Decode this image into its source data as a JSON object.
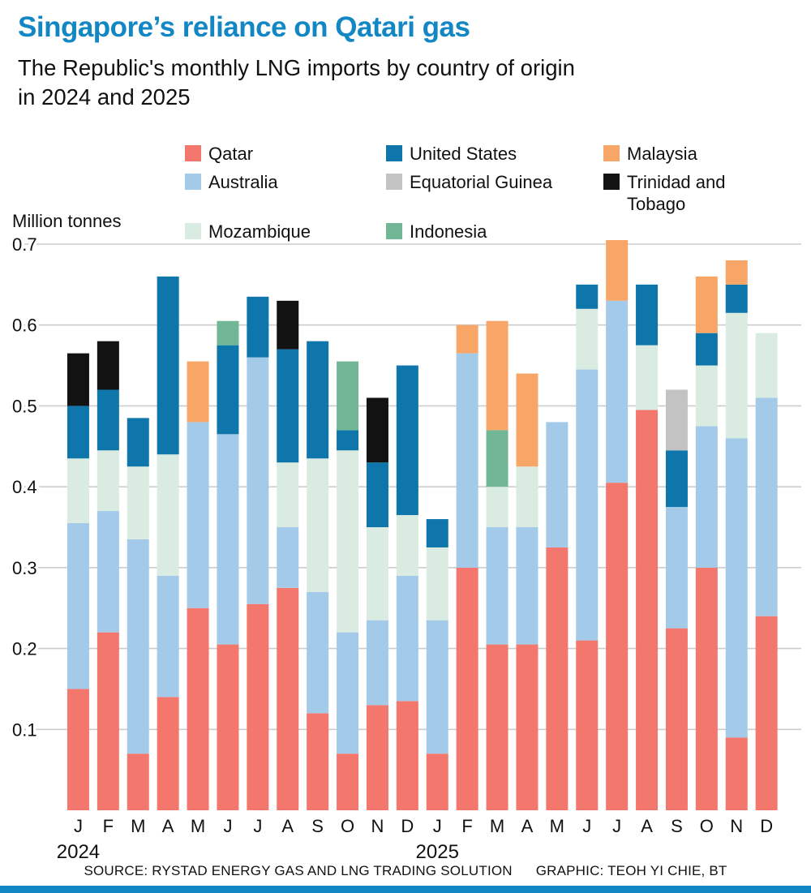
{
  "header": {
    "title": "Singapore’s reliance on Qatari gas",
    "subtitle_line1": "The Republic's monthly LNG imports by country of origin",
    "subtitle_line2": "in 2024 and 2025"
  },
  "colors": {
    "accent": "#1287c3",
    "gridline": "#cccccc",
    "text": "#111111"
  },
  "legend": {
    "order": [
      "Qatar",
      "United States",
      "Malaysia",
      "Australia",
      "Equatorial Guinea",
      "Trinidad and Tobago",
      "Mozambique",
      "Indonesia"
    ]
  },
  "chart_data": {
    "type": "bar",
    "stacked": true,
    "title": "Singapore’s reliance on Qatari gas",
    "unit_label": "Million tonnes",
    "grid": true,
    "legend_position": "top",
    "ylim": [
      0,
      0.72
    ],
    "yticks": [
      0.1,
      0.2,
      0.3,
      0.4,
      0.5,
      0.6,
      0.7
    ],
    "categories": [
      "J",
      "F",
      "M",
      "A",
      "M",
      "J",
      "J",
      "A",
      "S",
      "O",
      "N",
      "D",
      "J",
      "F",
      "M",
      "A",
      "M",
      "J",
      "J",
      "A",
      "S",
      "O",
      "N",
      "D"
    ],
    "year_labels": [
      {
        "label": "2024",
        "index": 0
      },
      {
        "label": "2025",
        "index": 12
      }
    ],
    "series": [
      {
        "name": "Qatar",
        "color": "#f3776d",
        "values": [
          0.15,
          0.22,
          0.07,
          0.14,
          0.25,
          0.205,
          0.255,
          0.275,
          0.12,
          0.07,
          0.13,
          0.135,
          0.07,
          0.3,
          0.205,
          0.205,
          0.325,
          0.21,
          0.405,
          0.495,
          0.225,
          0.3,
          0.09,
          0.24
        ]
      },
      {
        "name": "Australia",
        "color": "#a3cbe9",
        "values": [
          0.205,
          0.15,
          0.265,
          0.15,
          0.23,
          0.26,
          0.305,
          0.075,
          0.15,
          0.15,
          0.105,
          0.155,
          0.165,
          0.265,
          0.145,
          0.145,
          0.155,
          0.335,
          0.225,
          0,
          0.15,
          0.175,
          0.37,
          0.27
        ]
      },
      {
        "name": "Mozambique",
        "color": "#daece1",
        "values": [
          0.08,
          0.075,
          0.09,
          0.15,
          0,
          0,
          0,
          0.08,
          0.165,
          0.225,
          0.115,
          0.075,
          0.09,
          0,
          0.05,
          0.075,
          0,
          0.075,
          0,
          0.08,
          0,
          0.075,
          0.155,
          0.08
        ]
      },
      {
        "name": "United States",
        "color": "#0e76aa",
        "values": [
          0.065,
          0.075,
          0.06,
          0.22,
          0,
          0.11,
          0.075,
          0.14,
          0.145,
          0.025,
          0.08,
          0.185,
          0.035,
          0,
          0,
          0,
          0,
          0.03,
          0,
          0.075,
          0.07,
          0.04,
          0.035,
          0
        ]
      },
      {
        "name": "Indonesia",
        "color": "#72b795",
        "values": [
          0,
          0,
          0,
          0,
          0,
          0.03,
          0,
          0,
          0,
          0.085,
          0,
          0,
          0,
          0,
          0.07,
          0,
          0,
          0,
          0,
          0,
          0,
          0,
          0,
          0
        ]
      },
      {
        "name": "Malaysia",
        "color": "#f8a667",
        "values": [
          0,
          0,
          0,
          0,
          0.075,
          0,
          0,
          0,
          0,
          0,
          0,
          0,
          0,
          0.035,
          0.135,
          0.115,
          0,
          0,
          0.075,
          0,
          0,
          0.07,
          0.03,
          0
        ]
      },
      {
        "name": "Equatorial Guinea",
        "color": "#c3c3c3",
        "values": [
          0,
          0,
          0,
          0,
          0,
          0,
          0,
          0,
          0,
          0,
          0,
          0,
          0,
          0,
          0,
          0,
          0,
          0,
          0,
          0,
          0.075,
          0,
          0,
          0
        ]
      },
      {
        "name": "Trinidad and Tobago",
        "color": "#121212",
        "values": [
          0.065,
          0.06,
          0,
          0,
          0,
          0,
          0,
          0.06,
          0,
          0,
          0.08,
          0,
          0,
          0,
          0,
          0,
          0,
          0,
          0,
          0,
          0,
          0,
          0,
          0
        ]
      }
    ]
  },
  "footer": {
    "source": "SOURCE: RYSTAD ENERGY GAS AND LNG TRADING SOLUTION",
    "credit": "GRAPHIC: TEOH YI CHIE, BT"
  }
}
